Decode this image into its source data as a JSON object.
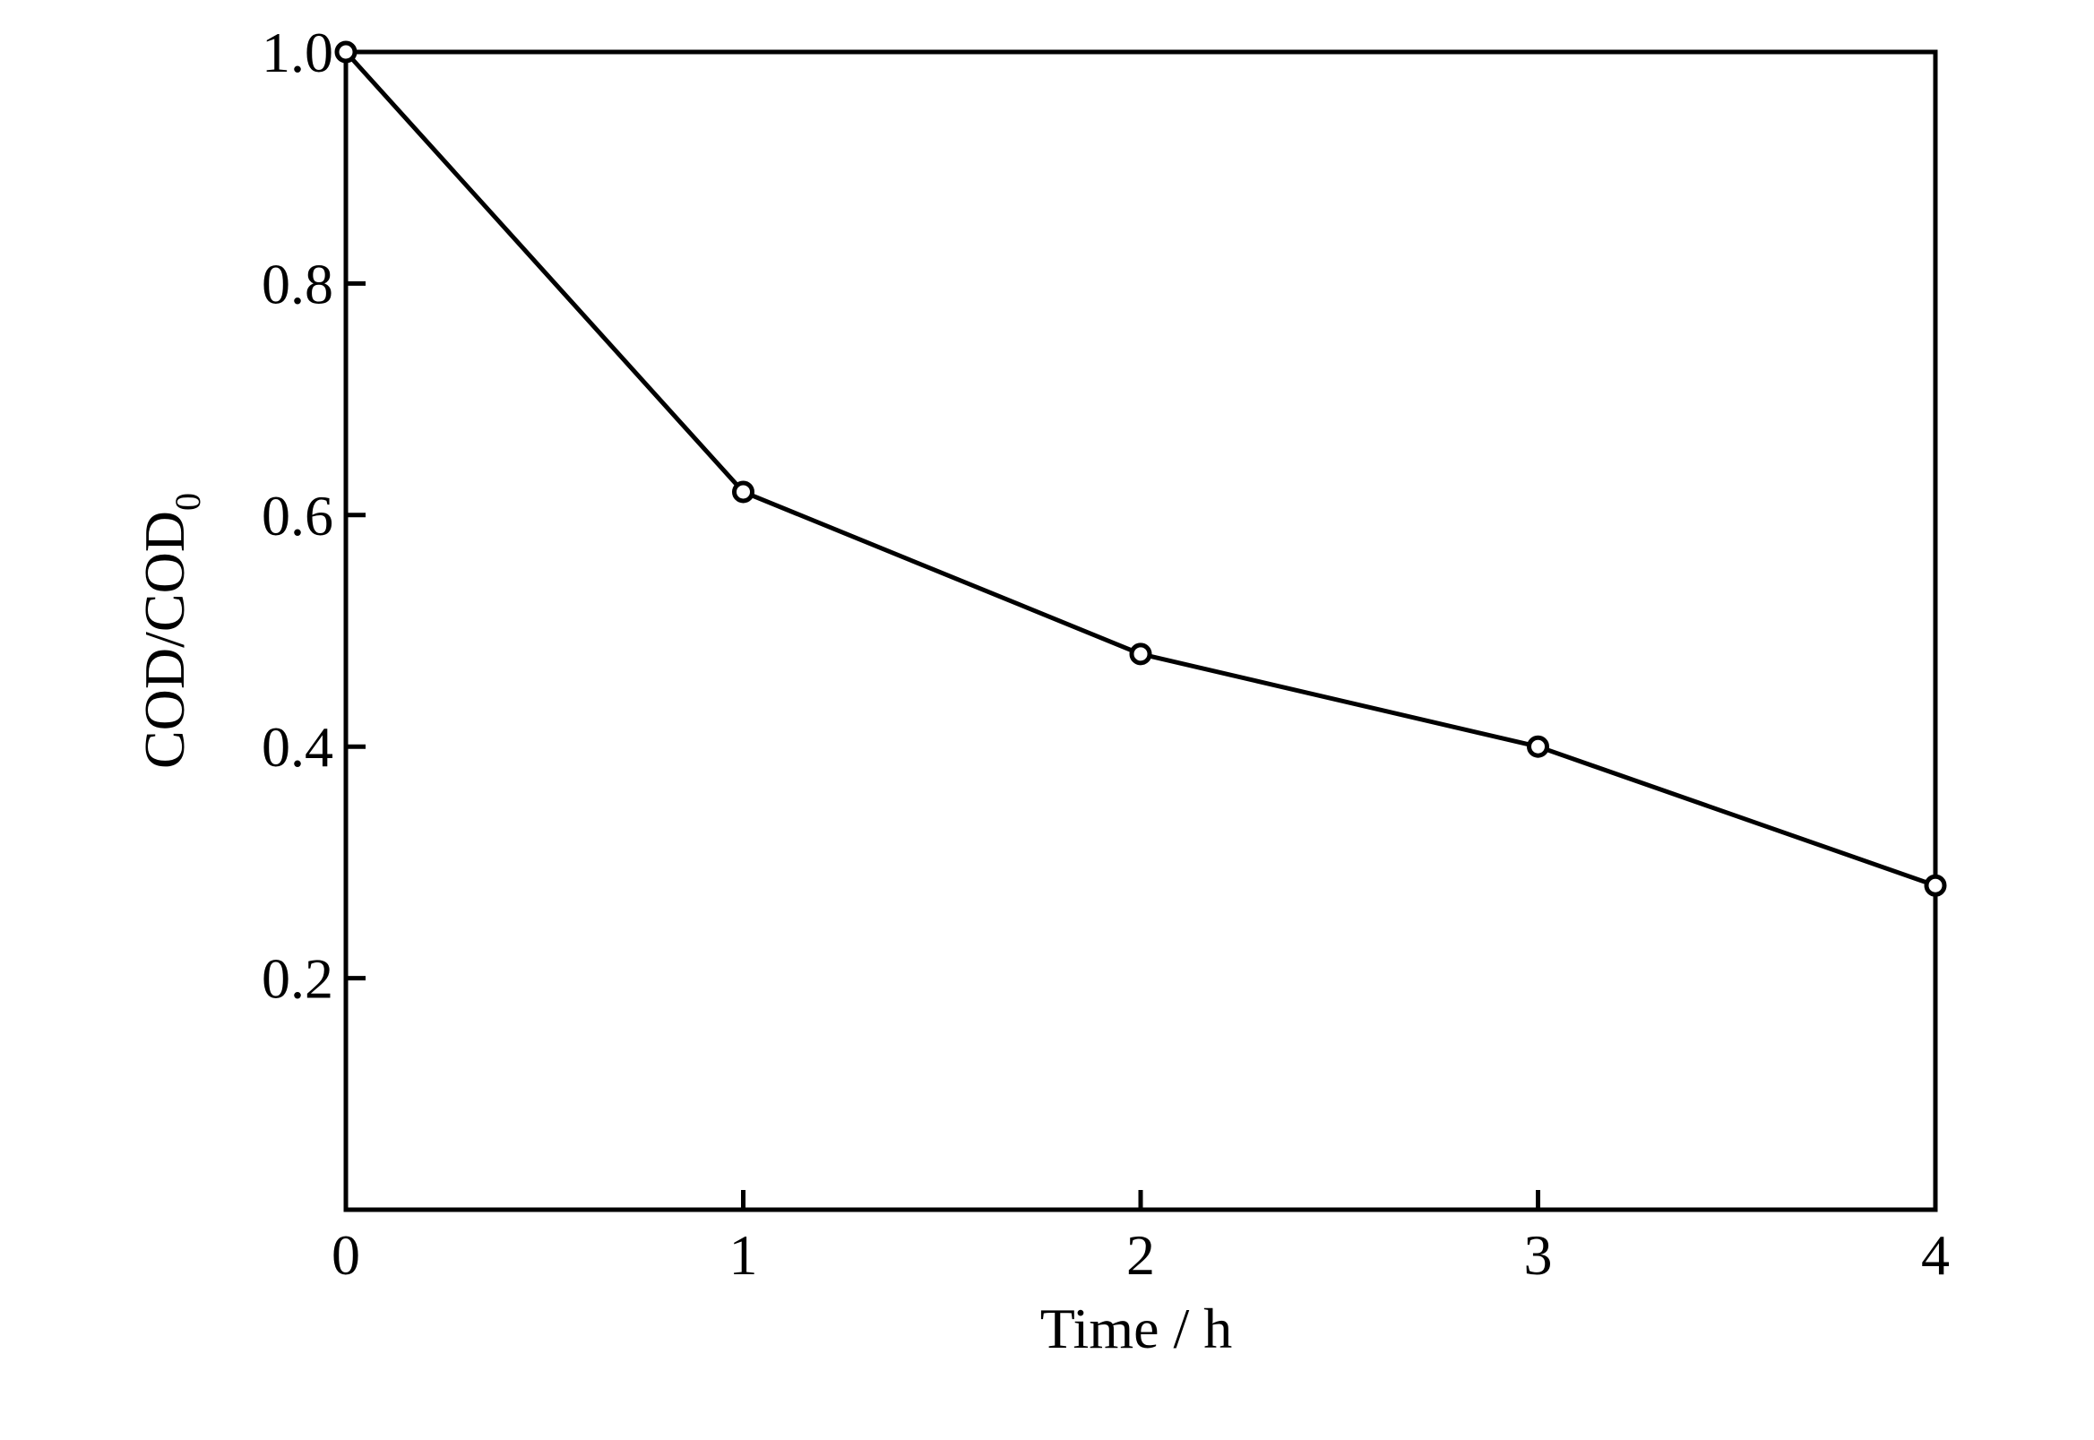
{
  "chart_data": {
    "type": "line",
    "title": "",
    "xlabel": "Time / h",
    "ylabel": "COD/COD",
    "ylabel_subscript": "0",
    "xlim": [
      0,
      4
    ],
    "ylim": [
      0,
      1.0
    ],
    "x_ticks": [
      0,
      1,
      2,
      3,
      4
    ],
    "x_tick_labels": [
      "0",
      "1",
      "2",
      "3",
      "4"
    ],
    "y_ticks": [
      0.2,
      0.4,
      0.6,
      0.8,
      1.0
    ],
    "y_tick_labels": [
      "0.2",
      "0.4",
      "0.6",
      "0.8",
      "1.0"
    ],
    "grid": false,
    "legend": "none",
    "series": [
      {
        "x": [
          0,
          1,
          2,
          3,
          4
        ],
        "y": [
          1.0,
          0.62,
          0.48,
          0.4,
          0.28
        ],
        "color": "#000000",
        "marker": "open-circle"
      }
    ]
  }
}
